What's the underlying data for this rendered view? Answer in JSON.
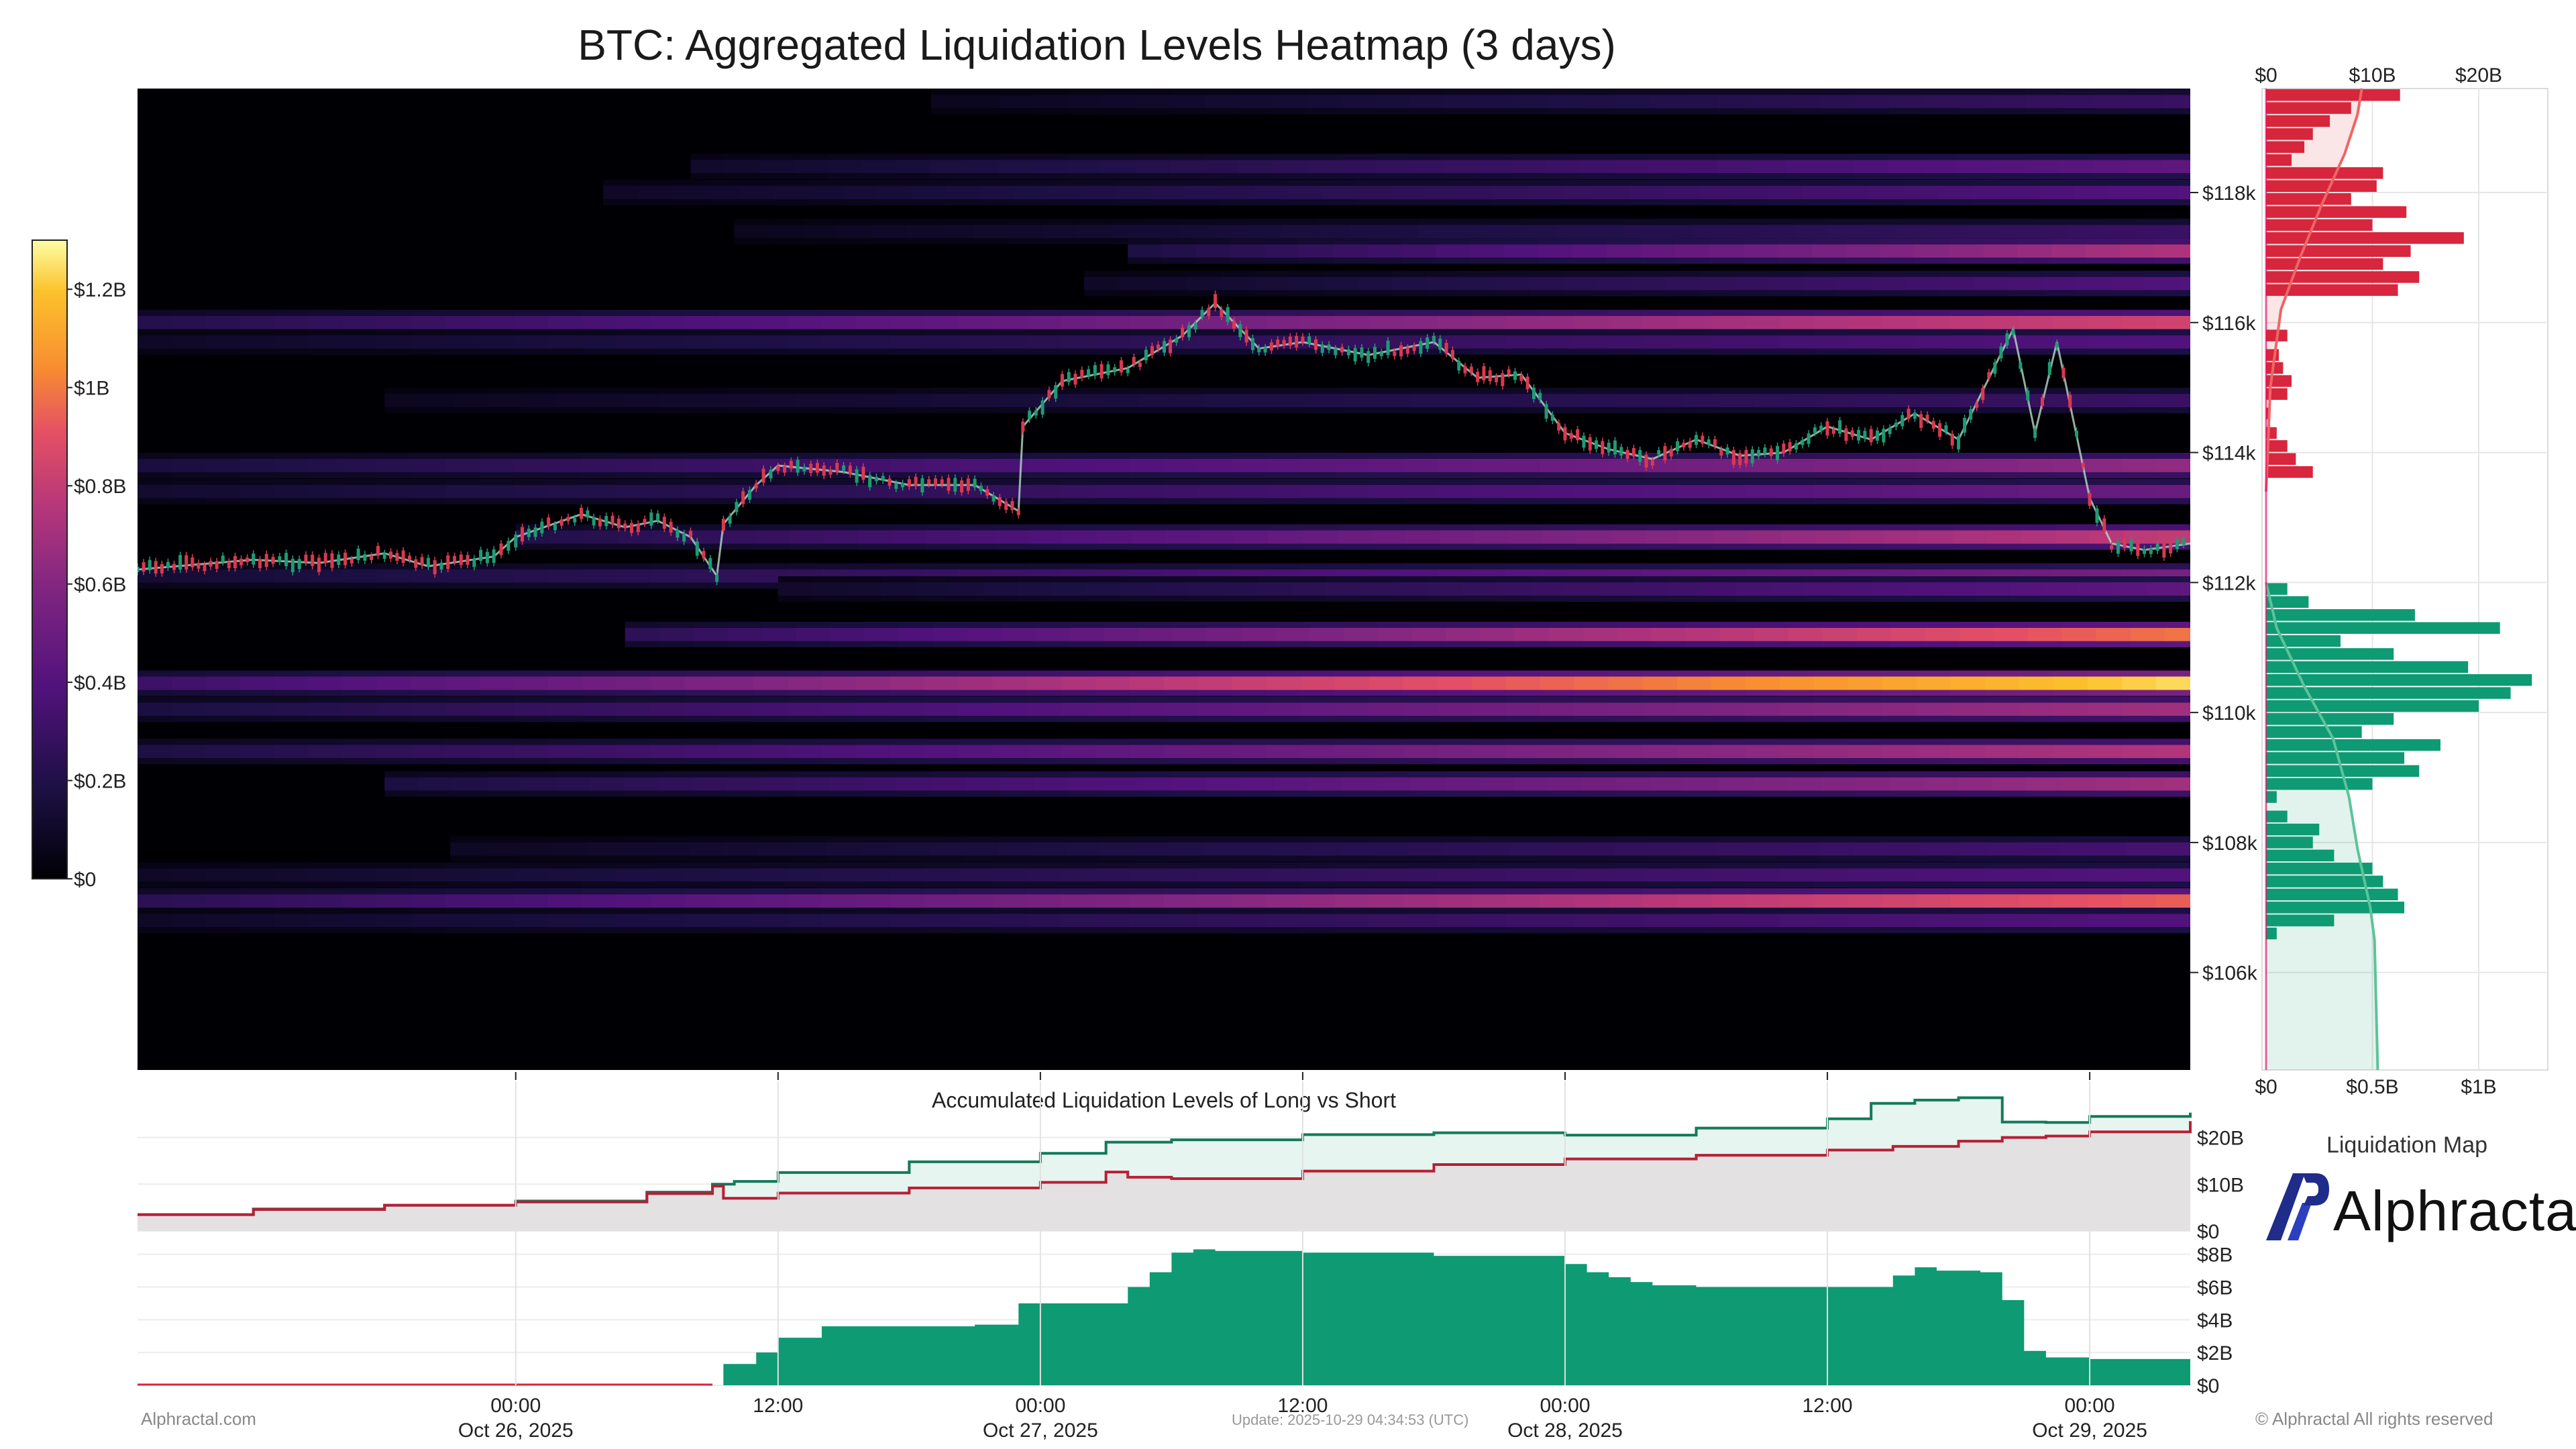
{
  "title": "BTC: Aggregated Liquidation Levels Heatmap (3 days)",
  "footer": {
    "site": "Alphractal.com",
    "update": "Update: 2025-10-29 04:34:53 (UTC)",
    "copyright": "© Alphractal All rights reserved"
  },
  "legend": {
    "title": "Liquidation Map",
    "brand": "Alphractal",
    "brand_logo_icon": "alphractal-logo-icon"
  },
  "colors": {
    "long": "#0e9a73",
    "short": "#d7263d",
    "heat_low": "#000004",
    "heat_mid": "#b5367a",
    "heat_high": "#fcffa4"
  },
  "chart_data": [
    {
      "type": "heatmap",
      "title": "BTC: Aggregated Liquidation Levels Heatmap (3 days)",
      "x_ticks": [
        {
          "time": "00:00",
          "date": "Oct 26, 2025"
        },
        {
          "time": "12:00",
          "date": ""
        },
        {
          "time": "00:00",
          "date": "Oct 27, 2025"
        },
        {
          "time": "12:00",
          "date": ""
        },
        {
          "time": "00:00",
          "date": "Oct 28, 2025"
        },
        {
          "time": "12:00",
          "date": ""
        },
        {
          "time": "00:00",
          "date": "Oct 29, 2025"
        }
      ],
      "x_range_hours": [
        -17.3,
        76.6
      ],
      "y_range": [
        104500,
        119600
      ],
      "y_ticks": [
        "$106k",
        "$108k",
        "$110k",
        "$112k",
        "$114k",
        "$116k",
        "$118k"
      ],
      "y_tick_values": [
        106000,
        108000,
        110000,
        112000,
        114000,
        116000,
        118000
      ],
      "colorbar": {
        "range": [
          0,
          1.3
        ],
        "ticks": [
          "$0",
          "$0.2B",
          "$0.4B",
          "$0.6B",
          "$0.8B",
          "$1B",
          "$1.2B"
        ],
        "tick_values": [
          0,
          0.2,
          0.4,
          0.6,
          0.8,
          1.0,
          1.2
        ]
      },
      "liquidation_bands": [
        {
          "price": 119400,
          "start": 19,
          "peak": 0.3
        },
        {
          "price": 118400,
          "start": 8,
          "peak": 0.45
        },
        {
          "price": 118000,
          "start": 4,
          "peak": 0.4
        },
        {
          "price": 117400,
          "start": 10,
          "peak": 0.3
        },
        {
          "price": 117100,
          "start": 28,
          "peak": 0.75
        },
        {
          "price": 116600,
          "start": 26,
          "peak": 0.4
        },
        {
          "price": 116000,
          "start": -17.3,
          "peak": 0.85
        },
        {
          "price": 115700,
          "start": -17.3,
          "peak": 0.4
        },
        {
          "price": 114800,
          "start": -6,
          "peak": 0.3
        },
        {
          "price": 113800,
          "start": -17.3,
          "peak": 0.65
        },
        {
          "price": 113400,
          "start": -17.3,
          "peak": 0.5
        },
        {
          "price": 112700,
          "start": 0,
          "peak": 0.8
        },
        {
          "price": 112100,
          "start": -17.3,
          "peak": 0.55
        },
        {
          "price": 111900,
          "start": 12,
          "peak": 0.45
        },
        {
          "price": 111200,
          "start": 5,
          "peak": 1.0
        },
        {
          "price": 110450,
          "start": -17.3,
          "peak": 1.25
        },
        {
          "price": 110050,
          "start": -17.3,
          "peak": 0.7
        },
        {
          "price": 109400,
          "start": -17.3,
          "peak": 0.75
        },
        {
          "price": 108900,
          "start": -6,
          "peak": 0.7
        },
        {
          "price": 107900,
          "start": -3,
          "peak": 0.35
        },
        {
          "price": 107500,
          "start": -17.3,
          "peak": 0.4
        },
        {
          "price": 107100,
          "start": -17.3,
          "peak": 0.95
        },
        {
          "price": 106800,
          "start": -17.3,
          "peak": 0.4
        }
      ],
      "price_series": {
        "hours": [
          -17.3,
          -12,
          -9,
          -6,
          -4,
          -1,
          0,
          3,
          5,
          6.5,
          8,
          9.2,
          9.5,
          11,
          12,
          15,
          18,
          21,
          23,
          23.2,
          25,
          28,
          30.5,
          32,
          34,
          36,
          39,
          42,
          44,
          46,
          48,
          50,
          52,
          54,
          56,
          58,
          60,
          62,
          64,
          66,
          68.5,
          69.5,
          70.5,
          72,
          73,
          74.5,
          76.6
        ],
        "prices": [
          112200,
          112350,
          112300,
          112450,
          112250,
          112400,
          112700,
          113050,
          112850,
          112950,
          112700,
          112100,
          112900,
          113500,
          113800,
          113700,
          113500,
          113500,
          113100,
          114400,
          115100,
          115300,
          115800,
          116300,
          115600,
          115700,
          115500,
          115700,
          115150,
          115200,
          114300,
          114050,
          113900,
          114200,
          113950,
          114000,
          114400,
          114200,
          114600,
          114200,
          115900,
          114300,
          115700,
          113300,
          112600,
          112500,
          112600
        ]
      }
    },
    {
      "type": "bar",
      "title": "Liquidation Map",
      "orientation": "horizontal",
      "top_axis_ticks": [
        "$0",
        "$10B",
        "$20B"
      ],
      "top_axis_values": [
        0,
        10,
        20
      ],
      "bottom_axis_ticks": [
        "$0",
        "$0.5B",
        "$1B"
      ],
      "bottom_axis_values": [
        0,
        0.5,
        1.0
      ],
      "short_bars": {
        "prices": [
          119500,
          119300,
          119100,
          118900,
          118700,
          118500,
          118300,
          118100,
          117900,
          117700,
          117500,
          117300,
          117100,
          116900,
          116700,
          116500,
          115800,
          115500,
          115300,
          115100,
          114900,
          114600,
          114300,
          114100,
          113900,
          113700
        ],
        "values": [
          0.63,
          0.4,
          0.3,
          0.22,
          0.18,
          0.12,
          0.55,
          0.52,
          0.4,
          0.66,
          0.5,
          0.93,
          0.68,
          0.55,
          0.72,
          0.62,
          0.1,
          0.06,
          0.08,
          0.12,
          0.1,
          0.02,
          0.05,
          0.1,
          0.14,
          0.22
        ]
      },
      "long_bars": {
        "prices": [
          111900,
          111700,
          111500,
          111300,
          111100,
          110900,
          110700,
          110500,
          110300,
          110100,
          109900,
          109700,
          109500,
          109300,
          109100,
          108900,
          108700,
          108400,
          108200,
          108000,
          107800,
          107600,
          107400,
          107200,
          107000,
          106800,
          106600
        ],
        "values": [
          0.1,
          0.2,
          0.7,
          1.1,
          0.35,
          0.6,
          0.95,
          1.25,
          1.15,
          1.0,
          0.6,
          0.45,
          0.82,
          0.65,
          0.72,
          0.5,
          0.05,
          0.1,
          0.25,
          0.22,
          0.32,
          0.5,
          0.55,
          0.62,
          0.65,
          0.32,
          0.05
        ]
      },
      "short_cumulative_max": 9.0,
      "long_cumulative_max": 10.5
    },
    {
      "type": "area",
      "title": "Accumulated Liquidation Levels of Long vs Short",
      "y_ticks": [
        "$0",
        "$10B",
        "$20B"
      ],
      "y_tick_values": [
        0,
        10,
        20
      ],
      "y_range": [
        0,
        33
      ],
      "series": [
        {
          "hours": [
            -17.3,
            -12,
            -6,
            0,
            6,
            9,
            9.5,
            12,
            18,
            24,
            27,
            28,
            30,
            36,
            42,
            48,
            54,
            60,
            63,
            66,
            68,
            70,
            72,
            76.6
          ],
          "values": [
            3.5,
            4.6,
            5.5,
            6.2,
            8.0,
            9.6,
            7.0,
            8.1,
            9.2,
            10.4,
            12.6,
            11.5,
            11.2,
            12.8,
            14.2,
            15.4,
            16.2,
            17.3,
            18.1,
            19.2,
            20.0,
            20.3,
            21.2,
            23.5
          ]
        },
        {
          "hours": [
            -17.3,
            -12,
            -6,
            0,
            6,
            9,
            10,
            12,
            18,
            24,
            27,
            30,
            36,
            42,
            48,
            54,
            60,
            62,
            64,
            66,
            68,
            70,
            72,
            76.6
          ],
          "values": [
            3.5,
            4.7,
            5.5,
            6.4,
            8.3,
            10.0,
            10.6,
            12.5,
            14.8,
            16.6,
            19.0,
            19.5,
            20.6,
            21.0,
            20.5,
            22.0,
            24.0,
            27.3,
            28.0,
            28.5,
            23.3,
            23.2,
            24.5,
            25.3
          ]
        }
      ]
    },
    {
      "type": "area",
      "y_ticks": [
        "$0",
        "$2B",
        "$4B",
        "$6B",
        "$8B"
      ],
      "y_tick_values": [
        0,
        2,
        4,
        6,
        8
      ],
      "y_range": [
        0,
        8.6
      ],
      "x": [
        -17.3,
        9,
        9.5,
        11,
        12,
        14,
        21,
        23,
        28,
        29,
        30,
        31,
        32,
        36,
        42,
        48,
        49,
        50,
        51,
        52,
        54,
        58,
        63,
        64,
        65,
        66,
        67,
        68,
        69,
        70,
        72,
        76.6
      ],
      "values": [
        0,
        0,
        1.3,
        2.0,
        2.9,
        3.6,
        3.7,
        5.0,
        6.0,
        6.9,
        8.1,
        8.3,
        8.2,
        8.1,
        7.9,
        7.4,
        6.9,
        6.6,
        6.3,
        6.1,
        6.0,
        6.0,
        6.7,
        7.2,
        7.0,
        7.0,
        6.9,
        5.2,
        2.1,
        1.7,
        1.6,
        1.5
      ]
    }
  ]
}
